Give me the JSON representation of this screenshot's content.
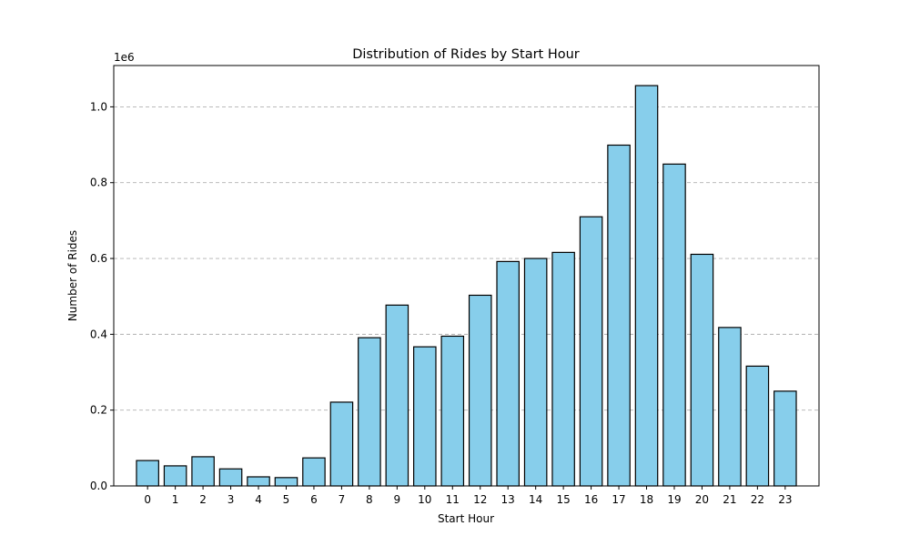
{
  "chart_data": {
    "type": "bar",
    "title": "Distribution of Rides by Start Hour",
    "xlabel": "Start Hour",
    "ylabel": "Number of Rides",
    "y_offset_label": "1e6",
    "categories": [
      "0",
      "1",
      "2",
      "3",
      "4",
      "5",
      "6",
      "7",
      "8",
      "9",
      "10",
      "11",
      "12",
      "13",
      "14",
      "15",
      "16",
      "17",
      "18",
      "19",
      "20",
      "21",
      "22",
      "23"
    ],
    "values": [
      67000,
      53000,
      77000,
      45000,
      24000,
      22000,
      74000,
      221000,
      391000,
      477000,
      367000,
      395000,
      503000,
      592000,
      600000,
      616000,
      710000,
      899000,
      1056000,
      849000,
      611000,
      418000,
      316000,
      250000
    ],
    "yticks": [
      0,
      200000,
      400000,
      600000,
      800000,
      1000000
    ],
    "ytick_labels": [
      "0.0",
      "0.2",
      "0.4",
      "0.6",
      "0.8",
      "1.0"
    ],
    "ylim": [
      0,
      1109000
    ],
    "grid": "y-dashed",
    "bar_color": "#87ceeb",
    "edge_color": "#000000"
  }
}
